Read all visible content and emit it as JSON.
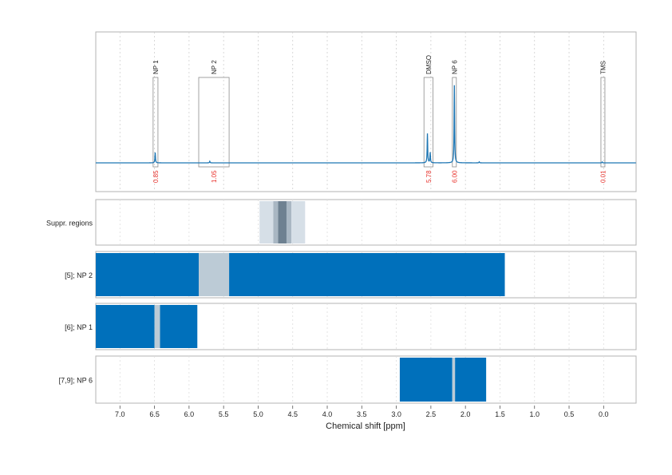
{
  "chart_data": {
    "type": "line",
    "xlabel": "Chemical shift [ppm]",
    "xlim": [
      7.35,
      -0.47
    ],
    "x_reversed": true,
    "x_ticks": [
      7.0,
      6.5,
      6.0,
      5.5,
      5.0,
      4.5,
      4.0,
      3.5,
      3.0,
      2.5,
      2.0,
      1.5,
      1.0,
      0.5,
      0.0
    ],
    "x_tick_labels": [
      "7.0",
      "6.5",
      "6.0",
      "5.5",
      "5.0",
      "4.5",
      "4.0",
      "3.5",
      "3.0",
      "2.5",
      "2.0",
      "1.5",
      "1.0",
      "0.5",
      "0.0"
    ],
    "grid": "vertical dotted",
    "spectrum": {
      "color": "#1f77b4",
      "baseline": 0.0,
      "peaks": [
        {
          "ppm": 6.49,
          "height": 0.12
        },
        {
          "ppm": 5.7,
          "height": 0.018
        },
        {
          "ppm": 2.55,
          "height": 0.34
        },
        {
          "ppm": 2.51,
          "height": 0.12
        },
        {
          "ppm": 2.16,
          "height": 0.9
        },
        {
          "ppm": 1.8,
          "height": 0.012
        },
        {
          "ppm": 0.02,
          "height": 0.01
        }
      ]
    },
    "annotations": [
      {
        "label": "NP 1",
        "from_ppm": 6.52,
        "to_ppm": 6.45,
        "value": "0.85"
      },
      {
        "label": "NP 2",
        "from_ppm": 5.86,
        "to_ppm": 5.42,
        "value": "1.05"
      },
      {
        "label": "DMSO",
        "from_ppm": 2.6,
        "to_ppm": 2.47,
        "value": "5.78"
      },
      {
        "label": "NP 6",
        "from_ppm": 2.18,
        "to_ppm": 2.14,
        "value": "6.00"
      },
      {
        "label": "TMS",
        "from_ppm": 0.03,
        "to_ppm": -0.01,
        "value": "0.01"
      }
    ],
    "annotation_value_color": "#e8302a",
    "tracks": [
      {
        "label": "Suppr. regions",
        "segments": [
          {
            "from_ppm": 4.98,
            "to_ppm": 4.32,
            "color": "#d6dfe7"
          },
          {
            "from_ppm": 4.78,
            "to_ppm": 4.52,
            "color": "#a9b7c3"
          },
          {
            "from_ppm": 4.71,
            "to_ppm": 4.59,
            "color": "#6e8191"
          }
        ]
      },
      {
        "label": "[5]; NP 2",
        "segments": [
          {
            "from_ppm": 7.35,
            "to_ppm": 5.86,
            "color": "#0070bb"
          },
          {
            "from_ppm": 5.86,
            "to_ppm": 5.42,
            "color": "#bccbd6"
          },
          {
            "from_ppm": 5.42,
            "to_ppm": 1.43,
            "color": "#0070bb"
          }
        ]
      },
      {
        "label": "[6]; NP 1",
        "segments": [
          {
            "from_ppm": 7.35,
            "to_ppm": 6.5,
            "color": "#0070bb"
          },
          {
            "from_ppm": 6.5,
            "to_ppm": 6.42,
            "color": "#bccbd6"
          },
          {
            "from_ppm": 6.42,
            "to_ppm": 5.88,
            "color": "#0070bb"
          }
        ]
      },
      {
        "label": "[7,9]; NP 6",
        "segments": [
          {
            "from_ppm": 2.95,
            "to_ppm": 2.19,
            "color": "#0070bb"
          },
          {
            "from_ppm": 2.19,
            "to_ppm": 2.15,
            "color": "#bccbd6"
          },
          {
            "from_ppm": 2.15,
            "to_ppm": 1.7,
            "color": "#0070bb"
          }
        ]
      }
    ]
  }
}
